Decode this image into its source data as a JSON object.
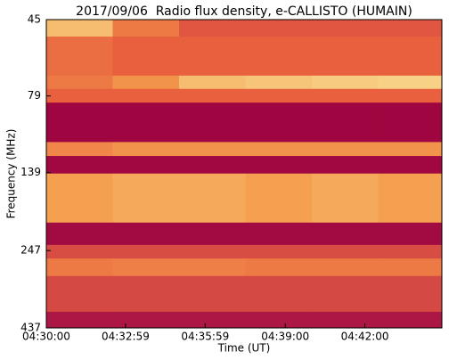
{
  "chart_data": {
    "type": "heatmap",
    "title": "2017/09/06  Radio flux density, e-CALLISTO (HUMAIN)",
    "xlabel": "Time (UT)",
    "ylabel": "Frequency (MHz)",
    "x_bins": [
      "04:30:00",
      "04:32:30",
      "04:35:00",
      "04:37:30",
      "04:40:00",
      "04:42:30",
      "04:44:54"
    ],
    "y_bins": [
      45,
      51,
      68,
      75,
      83,
      111,
      123,
      140,
      201,
      237,
      262,
      298,
      388,
      437
    ],
    "values": [
      [
        85,
        60,
        45,
        45,
        45,
        45
      ],
      [
        55,
        50,
        50,
        50,
        50,
        50
      ],
      [
        60,
        70,
        85,
        88,
        90,
        92
      ],
      [
        50,
        50,
        50,
        50,
        50,
        50
      ],
      [
        3,
        3,
        3,
        3,
        3,
        3
      ],
      [
        65,
        70,
        70,
        70,
        70,
        70
      ],
      [
        4,
        4,
        4,
        4,
        4,
        4
      ],
      [
        75,
        78,
        78,
        75,
        78,
        75
      ],
      [
        5,
        5,
        5,
        5,
        5,
        5
      ],
      [
        40,
        40,
        40,
        40,
        40,
        40
      ],
      [
        60,
        62,
        62,
        60,
        60,
        60
      ],
      [
        38,
        38,
        38,
        38,
        38,
        38
      ],
      [
        12,
        12,
        12,
        12,
        12,
        12
      ]
    ],
    "clim": [
      0,
      100
    ],
    "colormap": [
      "#9b0040",
      "#c0304a",
      "#e8603e",
      "#f5a050",
      "#f8e8a0"
    ],
    "xlim": [
      "04:30:00",
      "04:44:54"
    ],
    "xticks": [
      "04:30:00",
      "04:32:59",
      "04:35:59",
      "04:39:00",
      "04:42:00"
    ],
    "ylim": [
      45,
      437
    ],
    "ylog": true,
    "yinverted": true,
    "yticks": [
      45,
      79,
      139,
      247,
      437
    ]
  }
}
